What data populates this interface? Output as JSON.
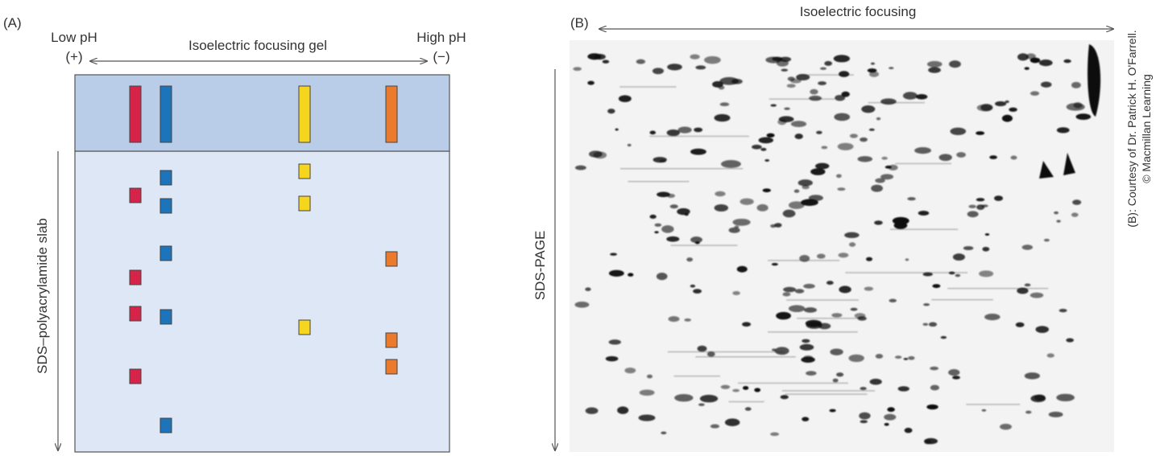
{
  "panel_a": {
    "label": "(A)",
    "low_ph": "Low pH",
    "low_ph_sign": "(+)",
    "gel_label": "Isoelectric focusing gel",
    "high_ph": "High pH",
    "high_ph_sign": "(−)",
    "slab_label": "SDS–polyacrylamide slab"
  },
  "panel_b": {
    "label": "(B)",
    "x_axis_label": "Isoelectric focusing",
    "y_axis_label": "SDS-PAGE"
  },
  "credit": {
    "line1": "(B): Courtesy of Dr. Patrick H. O'Farrell.",
    "line2": "© Macmillan Learning"
  }
}
